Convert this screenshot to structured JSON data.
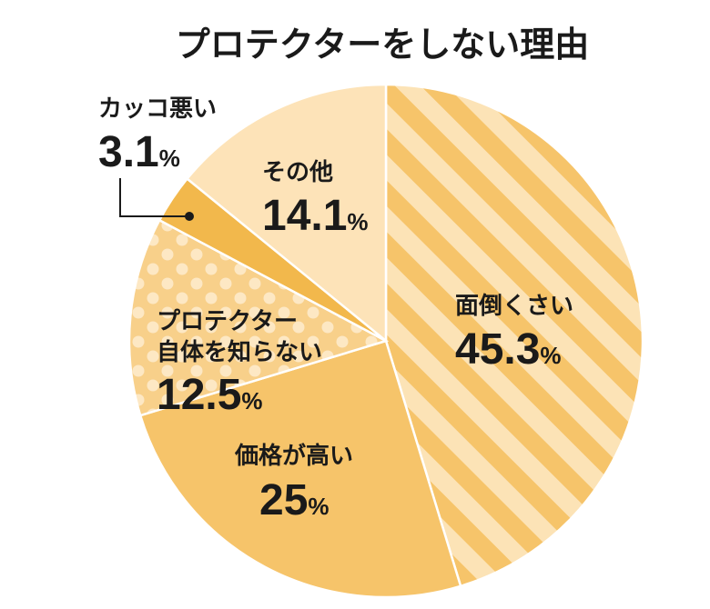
{
  "chart_data": {
    "type": "pie",
    "title": "プロテクターをしない理由",
    "categories": [
      "面倒くさい",
      "価格が高い",
      "プロテクター自体を知らない",
      "カッコ悪い",
      "その他"
    ],
    "values": [
      45.3,
      25,
      12.5,
      3.1,
      14.1
    ],
    "unit": "%",
    "slices": [
      {
        "label_lines": [
          "面倒くさい"
        ],
        "value_text": "45.3",
        "value": 45.3,
        "pattern": "stripes",
        "color": "#f6c46a",
        "alt_color": "#fce3b6"
      },
      {
        "label_lines": [
          "価格が高い"
        ],
        "value_text": "25",
        "value": 25,
        "pattern": "solid",
        "color": "#f6c46a"
      },
      {
        "label_lines": [
          "プロテクター",
          "自体を知らない"
        ],
        "value_text": "12.5",
        "value": 12.5,
        "pattern": "dots",
        "color": "#f8d08a",
        "alt_color": "#fde8c4"
      },
      {
        "label_lines": [
          "カッコ悪い"
        ],
        "value_text": "3.1",
        "value": 3.1,
        "pattern": "solid",
        "color": "#f2b84c"
      },
      {
        "label_lines": [
          "その他"
        ],
        "value_text": "14.1",
        "value": 14.1,
        "pattern": "solid",
        "color": "#fde3b8"
      }
    ]
  }
}
